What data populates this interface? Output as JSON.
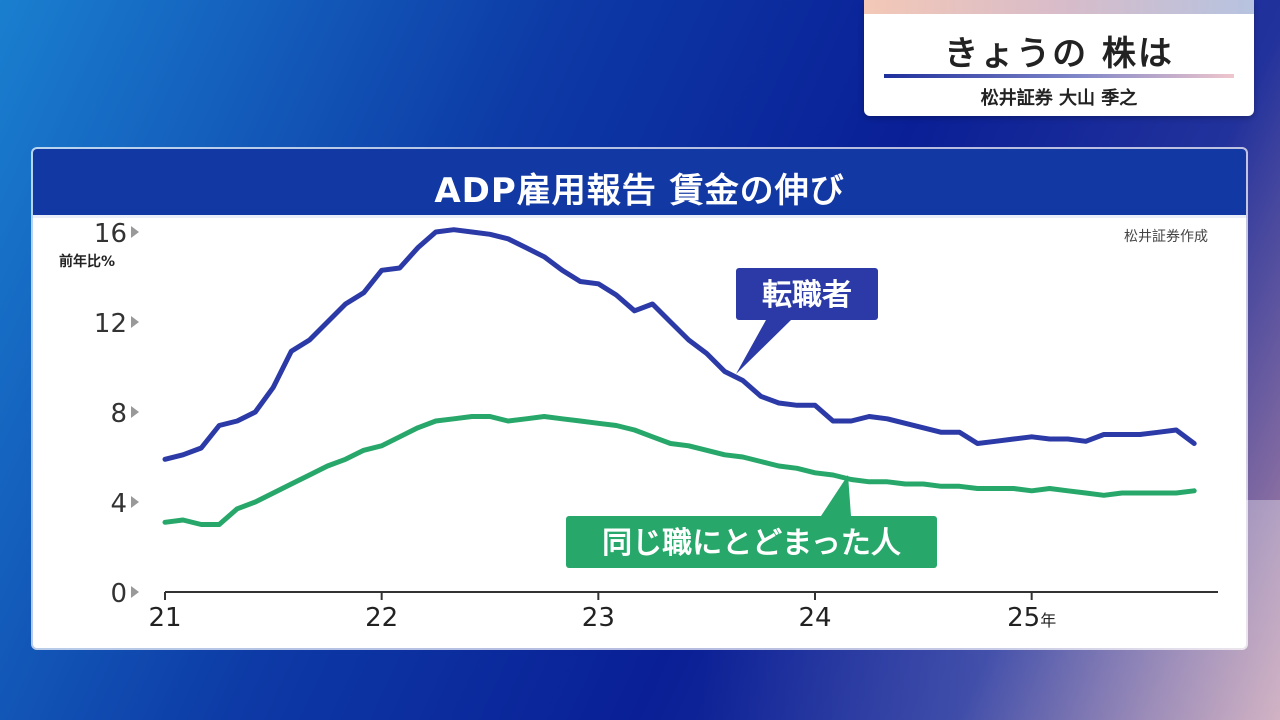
{
  "ticker": {
    "title": "きょうの 株は",
    "subtitle": "松井証券 大山 季之"
  },
  "chart_data": {
    "type": "line",
    "title": "ADP雇用報告 賃金の伸び",
    "ylabel": "前年比%",
    "source": "松井証券作成",
    "ylim": [
      0,
      16
    ],
    "yticks": [
      0,
      4,
      8,
      12,
      16
    ],
    "xlim": [
      2021.0,
      2025.8
    ],
    "xticks": [
      {
        "value": 2021,
        "label": "21"
      },
      {
        "value": 2022,
        "label": "22"
      },
      {
        "value": 2023,
        "label": "23"
      },
      {
        "value": 2024,
        "label": "24"
      },
      {
        "value": 2025,
        "label": "25",
        "suffix": "年"
      }
    ],
    "series": [
      {
        "name": "転職者",
        "color": "#2b3aa6",
        "points": [
          [
            2021.0,
            5.9
          ],
          [
            2021.083,
            6.1
          ],
          [
            2021.167,
            6.4
          ],
          [
            2021.25,
            7.4
          ],
          [
            2021.333,
            7.6
          ],
          [
            2021.417,
            8.0
          ],
          [
            2021.5,
            9.1
          ],
          [
            2021.583,
            10.7
          ],
          [
            2021.667,
            11.2
          ],
          [
            2021.75,
            12.0
          ],
          [
            2021.833,
            12.8
          ],
          [
            2021.917,
            13.3
          ],
          [
            2022.0,
            14.3
          ],
          [
            2022.083,
            14.4
          ],
          [
            2022.167,
            15.3
          ],
          [
            2022.25,
            16.0
          ],
          [
            2022.333,
            16.1
          ],
          [
            2022.417,
            16.0
          ],
          [
            2022.5,
            15.9
          ],
          [
            2022.583,
            15.7
          ],
          [
            2022.667,
            15.3
          ],
          [
            2022.75,
            14.9
          ],
          [
            2022.833,
            14.3
          ],
          [
            2022.917,
            13.8
          ],
          [
            2023.0,
            13.7
          ],
          [
            2023.083,
            13.2
          ],
          [
            2023.167,
            12.5
          ],
          [
            2023.25,
            12.8
          ],
          [
            2023.333,
            12.0
          ],
          [
            2023.417,
            11.2
          ],
          [
            2023.5,
            10.6
          ],
          [
            2023.583,
            9.8
          ],
          [
            2023.667,
            9.4
          ],
          [
            2023.75,
            8.7
          ],
          [
            2023.833,
            8.4
          ],
          [
            2023.917,
            8.3
          ],
          [
            2024.0,
            8.3
          ],
          [
            2024.083,
            7.6
          ],
          [
            2024.167,
            7.6
          ],
          [
            2024.25,
            7.8
          ],
          [
            2024.333,
            7.7
          ],
          [
            2024.417,
            7.5
          ],
          [
            2024.5,
            7.3
          ],
          [
            2024.583,
            7.1
          ],
          [
            2024.667,
            7.1
          ],
          [
            2024.75,
            6.6
          ],
          [
            2024.833,
            6.7
          ],
          [
            2024.917,
            6.8
          ],
          [
            2025.0,
            6.9
          ],
          [
            2025.083,
            6.8
          ],
          [
            2025.167,
            6.8
          ],
          [
            2025.25,
            6.7
          ],
          [
            2025.333,
            7.0
          ],
          [
            2025.417,
            7.0
          ],
          [
            2025.5,
            7.0
          ],
          [
            2025.583,
            7.1
          ],
          [
            2025.667,
            7.2
          ],
          [
            2025.75,
            6.6
          ]
        ]
      },
      {
        "name": "同じ職にとどまった人",
        "color": "#27a86a",
        "points": [
          [
            2021.0,
            3.1
          ],
          [
            2021.083,
            3.2
          ],
          [
            2021.167,
            3.0
          ],
          [
            2021.25,
            3.0
          ],
          [
            2021.333,
            3.7
          ],
          [
            2021.417,
            4.0
          ],
          [
            2021.5,
            4.4
          ],
          [
            2021.583,
            4.8
          ],
          [
            2021.667,
            5.2
          ],
          [
            2021.75,
            5.6
          ],
          [
            2021.833,
            5.9
          ],
          [
            2021.917,
            6.3
          ],
          [
            2022.0,
            6.5
          ],
          [
            2022.083,
            6.9
          ],
          [
            2022.167,
            7.3
          ],
          [
            2022.25,
            7.6
          ],
          [
            2022.333,
            7.7
          ],
          [
            2022.417,
            7.8
          ],
          [
            2022.5,
            7.8
          ],
          [
            2022.583,
            7.6
          ],
          [
            2022.667,
            7.7
          ],
          [
            2022.75,
            7.8
          ],
          [
            2022.833,
            7.7
          ],
          [
            2022.917,
            7.6
          ],
          [
            2023.0,
            7.5
          ],
          [
            2023.083,
            7.4
          ],
          [
            2023.167,
            7.2
          ],
          [
            2023.25,
            6.9
          ],
          [
            2023.333,
            6.6
          ],
          [
            2023.417,
            6.5
          ],
          [
            2023.5,
            6.3
          ],
          [
            2023.583,
            6.1
          ],
          [
            2023.667,
            6.0
          ],
          [
            2023.75,
            5.8
          ],
          [
            2023.833,
            5.6
          ],
          [
            2023.917,
            5.5
          ],
          [
            2024.0,
            5.3
          ],
          [
            2024.083,
            5.2
          ],
          [
            2024.167,
            5.0
          ],
          [
            2024.25,
            4.9
          ],
          [
            2024.333,
            4.9
          ],
          [
            2024.417,
            4.8
          ],
          [
            2024.5,
            4.8
          ],
          [
            2024.583,
            4.7
          ],
          [
            2024.667,
            4.7
          ],
          [
            2024.75,
            4.6
          ],
          [
            2024.833,
            4.6
          ],
          [
            2024.917,
            4.6
          ],
          [
            2025.0,
            4.5
          ],
          [
            2025.083,
            4.6
          ],
          [
            2025.167,
            4.5
          ],
          [
            2025.25,
            4.4
          ],
          [
            2025.333,
            4.3
          ],
          [
            2025.417,
            4.4
          ],
          [
            2025.5,
            4.4
          ],
          [
            2025.583,
            4.4
          ],
          [
            2025.667,
            4.4
          ],
          [
            2025.75,
            4.5
          ]
        ]
      }
    ],
    "annotations": [
      {
        "text": "転職者",
        "series": 0
      },
      {
        "text": "同じ職にとどまった人",
        "series": 1
      }
    ]
  }
}
